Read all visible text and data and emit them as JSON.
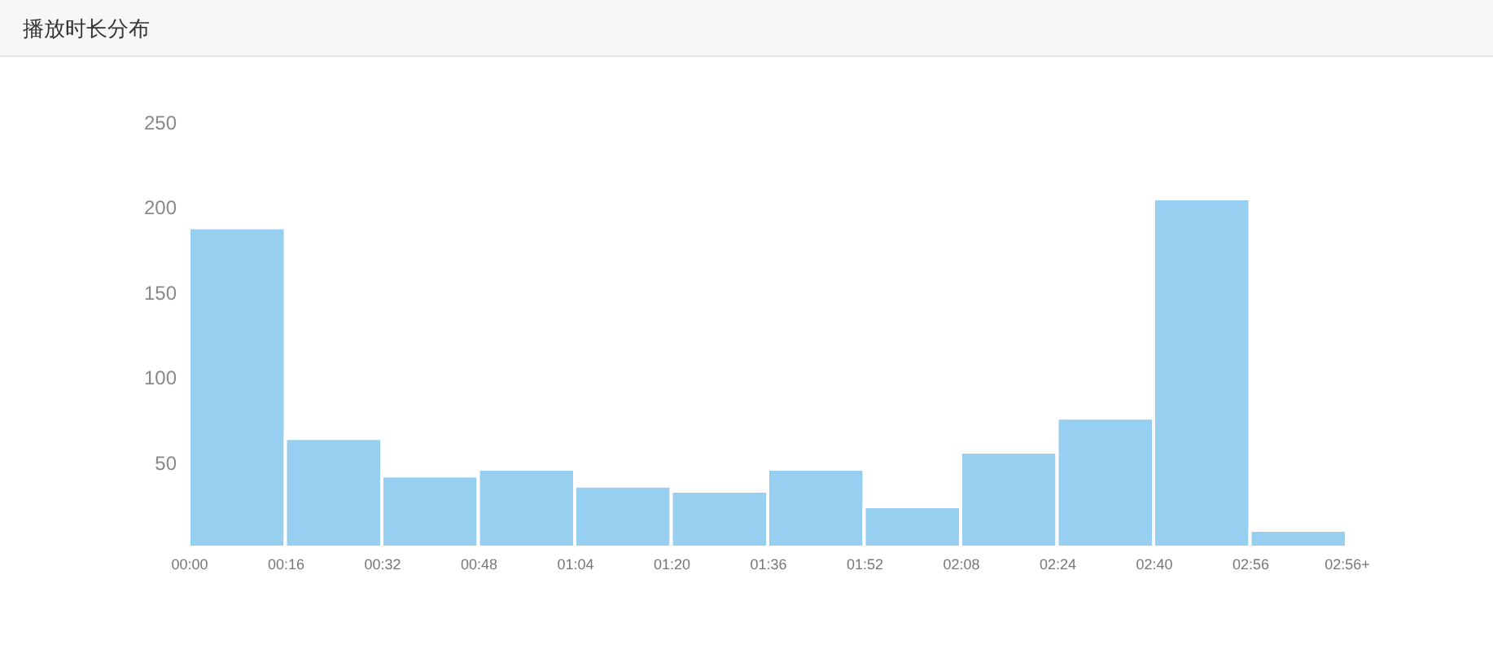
{
  "chart_data": {
    "type": "histogram",
    "title": "播放时长分布",
    "bins": [
      0,
      16,
      32,
      48,
      64,
      80,
      96,
      112,
      128,
      144,
      160,
      176,
      192
    ],
    "values": [
      188,
      64,
      42,
      46,
      36,
      33,
      46,
      24,
      56,
      76,
      205,
      10
    ],
    "color": "#96cff0",
    "xlim": [
      0,
      192
    ],
    "xticks": [
      {
        "value": 0,
        "label": "00:00"
      },
      {
        "value": 16,
        "label": "00:16"
      },
      {
        "value": 32,
        "label": "00:32"
      },
      {
        "value": 48,
        "label": "00:48"
      },
      {
        "value": 64,
        "label": "01:04"
      },
      {
        "value": 80,
        "label": "01:20"
      },
      {
        "value": 96,
        "label": "01:36"
      },
      {
        "value": 112,
        "label": "01:52"
      },
      {
        "value": 128,
        "label": "02:08"
      },
      {
        "value": 144,
        "label": "02:24"
      },
      {
        "value": 160,
        "label": "02:40"
      },
      {
        "value": 176,
        "label": "02:56"
      },
      {
        "value": 192,
        "label": "02:56+"
      }
    ],
    "ylim": [
      0,
      250
    ],
    "yticks": [
      50,
      100,
      150,
      200,
      250
    ],
    "grid": false
  }
}
